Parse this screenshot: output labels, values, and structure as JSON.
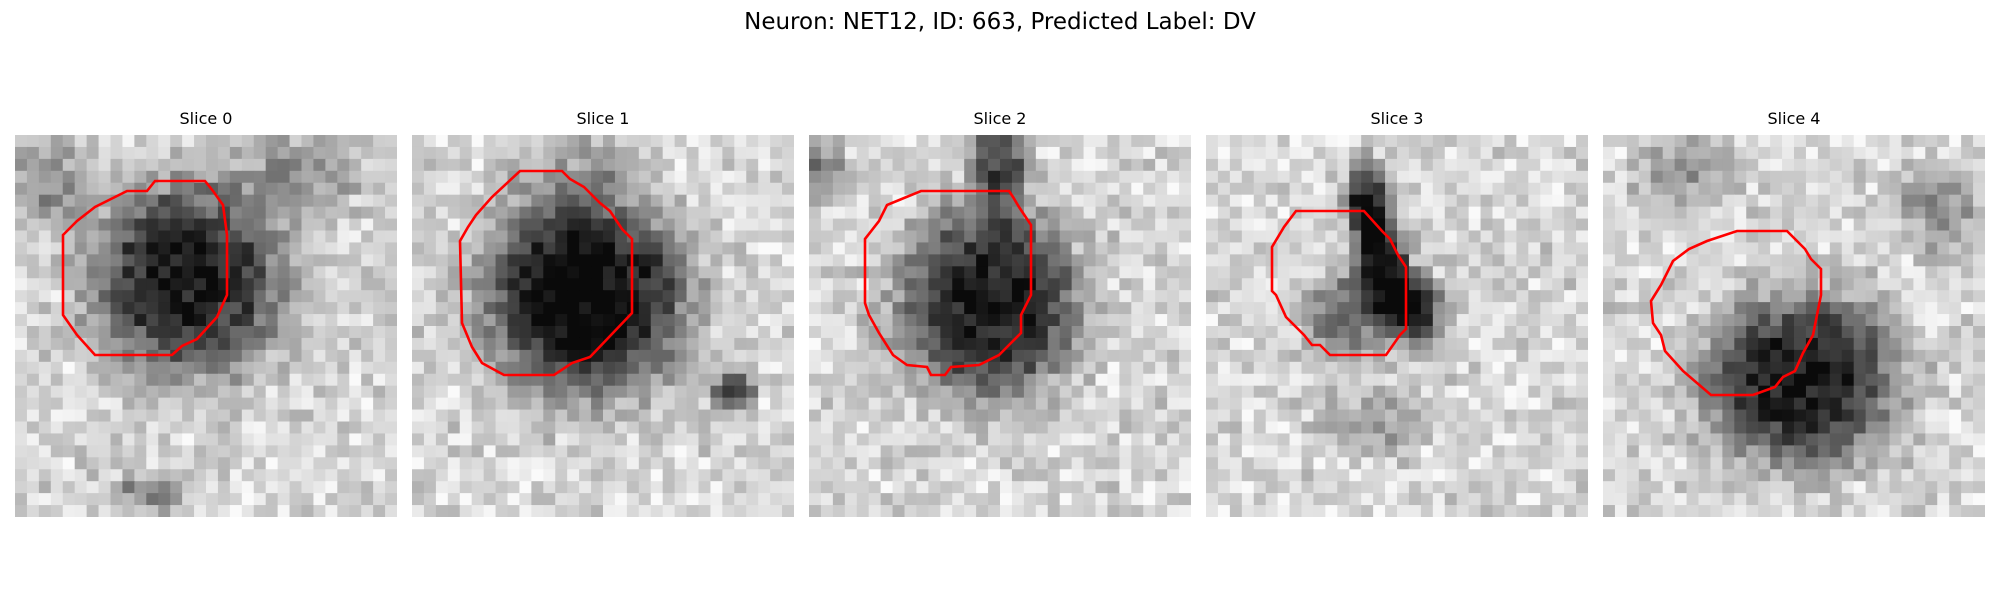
{
  "figure": {
    "title": "Neuron: NET12, ID: 663, Predicted Label: DV"
  },
  "slices": [
    {
      "label": "Slice 0"
    },
    {
      "label": "Slice 1"
    },
    {
      "label": "Slice 2"
    },
    {
      "label": "Slice 3"
    },
    {
      "label": "Slice 4"
    }
  ],
  "colors": {
    "contour": "#ff0000",
    "background": "#ffffff"
  }
}
